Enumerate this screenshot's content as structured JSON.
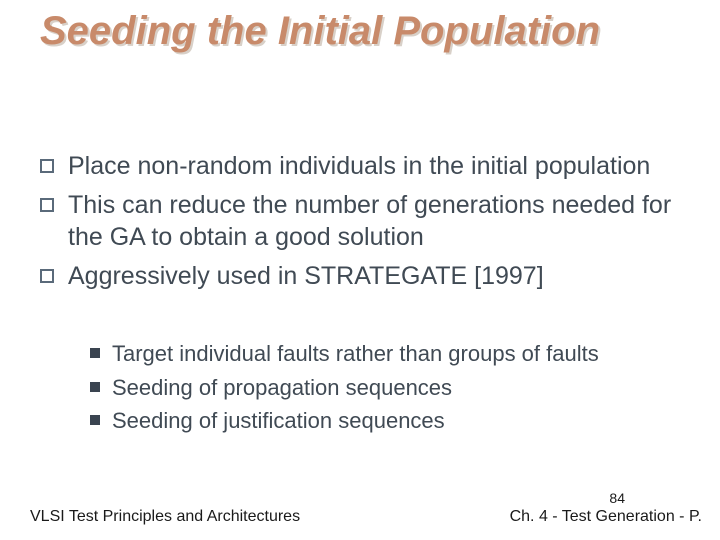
{
  "title": "Seeding the Initial Population",
  "title_color": "#c88a6a",
  "title_fontsize": 40,
  "body_color": "#404a54",
  "main_fontsize": 25,
  "sub_fontsize": 22,
  "main_bullet_border": "#5a6a7a",
  "sub_bullet_fill": "#3a4450",
  "background_color": "#ffffff",
  "main_items": [
    "Place non-random individuals in the initial population",
    "This can reduce the number of generations needed for the GA to obtain a good solution",
    "Aggressively used in STRATEGATE [1997]"
  ],
  "sub_items": [
    "Target individual faults rather than groups of faults",
    "Seeding of propagation sequences",
    "Seeding of justification sequences"
  ],
  "footer_left": "VLSI Test Principles and Architectures",
  "footer_right": "Ch. 4 - Test Generation - P.",
  "page_number": "84"
}
